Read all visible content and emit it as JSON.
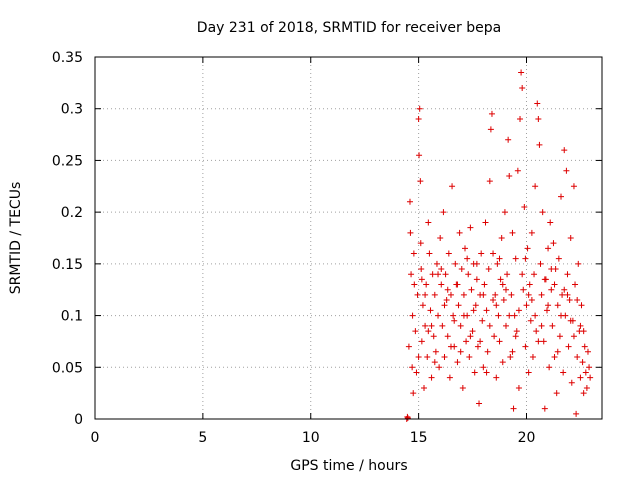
{
  "chart_data": {
    "type": "scatter",
    "title": "Day 231 of 2018, SRMTID for receiver bepa",
    "xlabel": "GPS time / hours",
    "ylabel": "SRMTID / TECUs",
    "xlim": [
      0,
      23.5
    ],
    "ylim": [
      0,
      0.35
    ],
    "x_ticks": [
      0,
      5,
      10,
      15,
      20
    ],
    "x_tick_labels": [
      "0",
      "5",
      "10",
      "15",
      "20"
    ],
    "y_ticks": [
      0,
      0.05,
      0.1,
      0.15,
      0.2,
      0.25,
      0.3,
      0.35
    ],
    "y_tick_labels": [
      "0",
      "0.05",
      "0.1",
      "0.15",
      "0.2",
      "0.25",
      "0.3",
      "0.35"
    ],
    "grid": true,
    "marker": "+",
    "color": "#dd0000",
    "series": [
      {
        "name": "SRMTID",
        "points": [
          [
            14.45,
            0.0
          ],
          [
            14.48,
            0.002
          ],
          [
            14.5,
            0.001
          ],
          [
            14.55,
            0.07
          ],
          [
            14.6,
            0.21
          ],
          [
            14.62,
            0.18
          ],
          [
            14.65,
            0.14
          ],
          [
            14.7,
            0.05
          ],
          [
            14.72,
            0.1
          ],
          [
            14.75,
            0.025
          ],
          [
            14.78,
            0.16
          ],
          [
            14.8,
            0.13
          ],
          [
            14.85,
            0.085
          ],
          [
            14.9,
            0.045
          ],
          [
            14.95,
            0.12
          ],
          [
            15.0,
            0.29
          ],
          [
            15.02,
            0.255
          ],
          [
            15.05,
            0.3
          ],
          [
            15.08,
            0.23
          ],
          [
            15.1,
            0.17
          ],
          [
            15.12,
            0.145
          ],
          [
            15.15,
            0.075
          ],
          [
            15.2,
            0.11
          ],
          [
            15.25,
            0.03
          ],
          [
            15.3,
            0.09
          ],
          [
            15.35,
            0.13
          ],
          [
            15.4,
            0.06
          ],
          [
            15.45,
            0.19
          ],
          [
            15.5,
            0.16
          ],
          [
            15.55,
            0.105
          ],
          [
            15.6,
            0.04
          ],
          [
            15.65,
            0.14
          ],
          [
            15.7,
            0.08
          ],
          [
            15.75,
            0.12
          ],
          [
            15.8,
            0.065
          ],
          [
            15.85,
            0.15
          ],
          [
            15.9,
            0.1
          ],
          [
            15.95,
            0.05
          ],
          [
            16.0,
            0.175
          ],
          [
            16.05,
            0.13
          ],
          [
            16.1,
            0.09
          ],
          [
            16.15,
            0.2
          ],
          [
            16.2,
            0.06
          ],
          [
            16.25,
            0.14
          ],
          [
            16.3,
            0.115
          ],
          [
            16.35,
            0.08
          ],
          [
            16.4,
            0.16
          ],
          [
            16.45,
            0.04
          ],
          [
            16.5,
            0.12
          ],
          [
            16.55,
            0.225
          ],
          [
            16.6,
            0.1
          ],
          [
            16.65,
            0.07
          ],
          [
            16.7,
            0.15
          ],
          [
            16.75,
            0.13
          ],
          [
            16.8,
            0.055
          ],
          [
            16.85,
            0.11
          ],
          [
            16.9,
            0.18
          ],
          [
            16.95,
            0.09
          ],
          [
            17.0,
            0.145
          ],
          [
            17.05,
            0.03
          ],
          [
            17.1,
            0.12
          ],
          [
            17.15,
            0.165
          ],
          [
            17.2,
            0.075
          ],
          [
            17.25,
            0.1
          ],
          [
            17.3,
            0.14
          ],
          [
            17.35,
            0.06
          ],
          [
            17.4,
            0.185
          ],
          [
            17.45,
            0.125
          ],
          [
            17.5,
            0.085
          ],
          [
            17.55,
            0.15
          ],
          [
            17.6,
            0.045
          ],
          [
            17.65,
            0.11
          ],
          [
            17.7,
            0.135
          ],
          [
            17.75,
            0.07
          ],
          [
            17.8,
            0.015
          ],
          [
            17.85,
            0.12
          ],
          [
            17.9,
            0.16
          ],
          [
            17.95,
            0.095
          ],
          [
            18.0,
            0.05
          ],
          [
            18.05,
            0.13
          ],
          [
            18.1,
            0.19
          ],
          [
            18.15,
            0.105
          ],
          [
            18.2,
            0.065
          ],
          [
            18.25,
            0.145
          ],
          [
            18.3,
            0.23
          ],
          [
            18.35,
            0.28
          ],
          [
            18.4,
            0.295
          ],
          [
            18.45,
            0.16
          ],
          [
            18.5,
            0.08
          ],
          [
            18.55,
            0.12
          ],
          [
            18.6,
            0.04
          ],
          [
            18.65,
            0.15
          ],
          [
            18.7,
            0.1
          ],
          [
            18.75,
            0.075
          ],
          [
            18.8,
            0.135
          ],
          [
            18.85,
            0.175
          ],
          [
            18.9,
            0.055
          ],
          [
            18.95,
            0.115
          ],
          [
            19.0,
            0.2
          ],
          [
            19.05,
            0.09
          ],
          [
            19.1,
            0.14
          ],
          [
            19.15,
            0.27
          ],
          [
            19.2,
            0.235
          ],
          [
            19.25,
            0.06
          ],
          [
            19.3,
            0.12
          ],
          [
            19.35,
            0.18
          ],
          [
            19.4,
            0.01
          ],
          [
            19.45,
            0.1
          ],
          [
            19.5,
            0.155
          ],
          [
            19.55,
            0.085
          ],
          [
            19.6,
            0.24
          ],
          [
            19.65,
            0.03
          ],
          [
            19.7,
            0.29
          ],
          [
            19.75,
            0.335
          ],
          [
            19.8,
            0.32
          ],
          [
            19.85,
            0.125
          ],
          [
            19.9,
            0.205
          ],
          [
            19.95,
            0.07
          ],
          [
            20.0,
            0.11
          ],
          [
            20.05,
            0.165
          ],
          [
            20.1,
            0.045
          ],
          [
            20.15,
            0.13
          ],
          [
            20.2,
            0.095
          ],
          [
            20.25,
            0.18
          ],
          [
            20.3,
            0.06
          ],
          [
            20.35,
            0.14
          ],
          [
            20.4,
            0.225
          ],
          [
            20.45,
            0.085
          ],
          [
            20.5,
            0.305
          ],
          [
            20.55,
            0.29
          ],
          [
            20.6,
            0.265
          ],
          [
            20.65,
            0.15
          ],
          [
            20.7,
            0.12
          ],
          [
            20.75,
            0.2
          ],
          [
            20.8,
            0.075
          ],
          [
            20.85,
            0.01
          ],
          [
            20.9,
            0.135
          ],
          [
            20.95,
            0.105
          ],
          [
            21.0,
            0.165
          ],
          [
            21.05,
            0.05
          ],
          [
            21.1,
            0.19
          ],
          [
            21.15,
            0.125
          ],
          [
            21.2,
            0.09
          ],
          [
            21.25,
            0.17
          ],
          [
            21.3,
            0.06
          ],
          [
            21.35,
            0.145
          ],
          [
            21.4,
            0.025
          ],
          [
            21.45,
            0.11
          ],
          [
            21.5,
            0.155
          ],
          [
            21.55,
            0.08
          ],
          [
            21.6,
            0.215
          ],
          [
            21.65,
            0.12
          ],
          [
            21.7,
            0.045
          ],
          [
            21.75,
            0.26
          ],
          [
            21.8,
            0.1
          ],
          [
            21.85,
            0.24
          ],
          [
            21.9,
            0.14
          ],
          [
            21.95,
            0.07
          ],
          [
            22.0,
            0.115
          ],
          [
            22.05,
            0.175
          ],
          [
            22.1,
            0.035
          ],
          [
            22.15,
            0.095
          ],
          [
            22.2,
            0.225
          ],
          [
            22.25,
            0.13
          ],
          [
            22.3,
            0.005
          ],
          [
            22.35,
            0.06
          ],
          [
            22.4,
            0.15
          ],
          [
            22.45,
            0.085
          ],
          [
            22.5,
            0.04
          ],
          [
            22.55,
            0.11
          ],
          [
            22.6,
            0.055
          ],
          [
            22.65,
            0.025
          ],
          [
            22.7,
            0.07
          ],
          [
            22.75,
            0.045
          ],
          [
            22.8,
            0.03
          ],
          [
            22.85,
            0.065
          ],
          [
            22.9,
            0.05
          ],
          [
            22.95,
            0.04
          ],
          [
            15.0,
            0.06
          ],
          [
            15.3,
            0.12
          ],
          [
            15.6,
            0.09
          ],
          [
            15.9,
            0.14
          ],
          [
            16.2,
            0.11
          ],
          [
            16.5,
            0.07
          ],
          [
            16.8,
            0.13
          ],
          [
            17.1,
            0.1
          ],
          [
            17.4,
            0.08
          ],
          [
            17.7,
            0.15
          ],
          [
            18.0,
            0.12
          ],
          [
            18.3,
            0.09
          ],
          [
            18.6,
            0.11
          ],
          [
            18.9,
            0.13
          ],
          [
            19.2,
            0.1
          ],
          [
            19.5,
            0.08
          ],
          [
            19.8,
            0.14
          ],
          [
            20.1,
            0.12
          ],
          [
            20.4,
            0.1
          ],
          [
            20.7,
            0.09
          ],
          [
            21.0,
            0.11
          ],
          [
            21.3,
            0.13
          ],
          [
            21.6,
            0.1
          ],
          [
            21.9,
            0.12
          ],
          [
            22.2,
            0.08
          ],
          [
            22.5,
            0.09
          ],
          [
            15.15,
            0.135
          ],
          [
            15.45,
            0.085
          ],
          [
            15.75,
            0.055
          ],
          [
            16.05,
            0.145
          ],
          [
            16.35,
            0.125
          ],
          [
            16.65,
            0.095
          ],
          [
            16.95,
            0.065
          ],
          [
            17.25,
            0.155
          ],
          [
            17.55,
            0.105
          ],
          [
            17.85,
            0.075
          ],
          [
            18.15,
            0.045
          ],
          [
            18.45,
            0.115
          ],
          [
            18.75,
            0.155
          ],
          [
            19.05,
            0.125
          ],
          [
            19.35,
            0.065
          ],
          [
            19.65,
            0.105
          ],
          [
            19.95,
            0.155
          ],
          [
            20.25,
            0.115
          ],
          [
            20.55,
            0.075
          ],
          [
            20.85,
            0.135
          ],
          [
            21.15,
            0.145
          ],
          [
            21.45,
            0.065
          ],
          [
            21.75,
            0.125
          ],
          [
            22.05,
            0.095
          ],
          [
            22.35,
            0.115
          ],
          [
            22.65,
            0.085
          ]
        ]
      }
    ]
  }
}
